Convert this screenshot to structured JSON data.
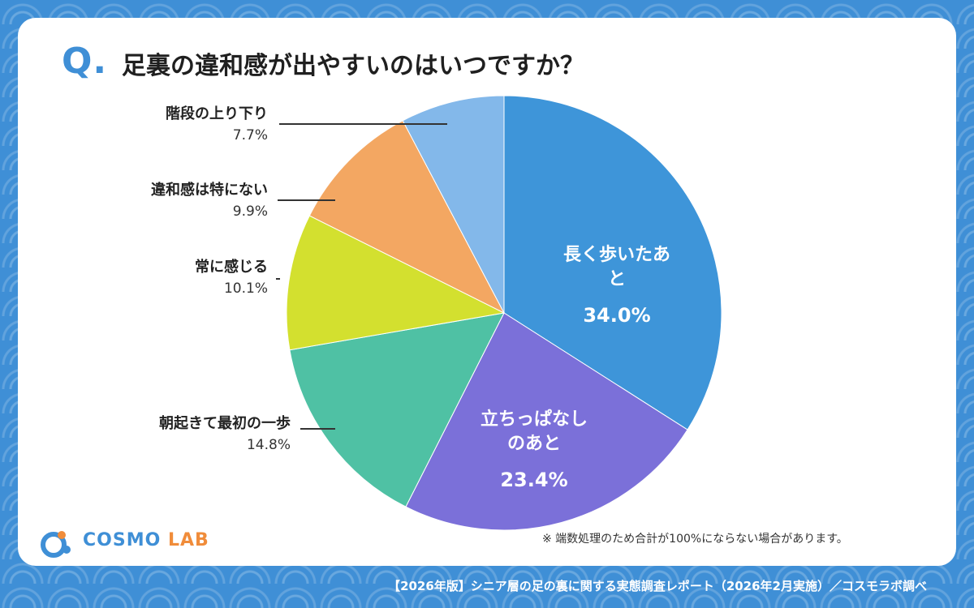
{
  "question": {
    "mark": "Q.",
    "title": "足裏の違和感が出やすいのはいつですか？"
  },
  "chart_data": {
    "type": "pie",
    "slices": [
      {
        "label": "長く歩いたあと",
        "value": 34.0,
        "display": "34.0%",
        "color": "#3e95d9"
      },
      {
        "label": "立ちっぱなしのあと",
        "value": 23.4,
        "display": "23.4%",
        "color": "#7b70d9"
      },
      {
        "label": "朝起きて最初の一歩",
        "value": 14.8,
        "display": "14.8%",
        "color": "#4fc1a4"
      },
      {
        "label": "常に感じる",
        "value": 10.1,
        "display": "10.1%",
        "color": "#d3e02f"
      },
      {
        "label": "違和感は特にない",
        "value": 9.9,
        "display": "9.9%",
        "color": "#f3a762"
      },
      {
        "label": "階段の上り下り",
        "value": 7.7,
        "display": "7.7%",
        "color": "#83b8ea"
      }
    ]
  },
  "note": "※ 端数処理のため合計が100%にならない場合があります。",
  "logo": {
    "main": "COSMO",
    "sub": "LAB"
  },
  "footer": "【2026年版】シニア層の足の裏に関する実態調査レポート（2026年2月実施）／コスモラボ調べ"
}
